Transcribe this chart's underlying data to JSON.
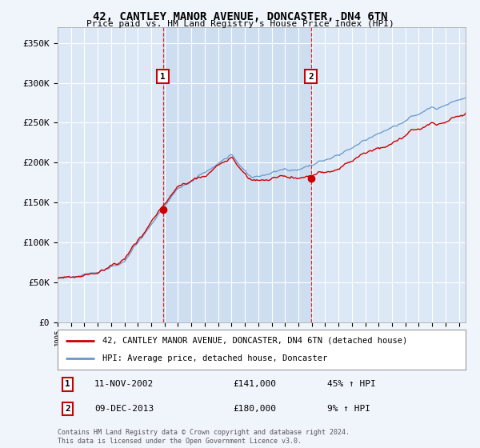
{
  "title": "42, CANTLEY MANOR AVENUE, DONCASTER, DN4 6TN",
  "subtitle": "Price paid vs. HM Land Registry's House Price Index (HPI)",
  "legend_line1": "42, CANTLEY MANOR AVENUE, DONCASTER, DN4 6TN (detached house)",
  "legend_line2": "HPI: Average price, detached house, Doncaster",
  "sale1_date": "11-NOV-2002",
  "sale1_price": "£141,000",
  "sale1_hpi": "45% ↑ HPI",
  "sale1_year": 2002.87,
  "sale1_value": 141000,
  "sale2_date": "09-DEC-2013",
  "sale2_price": "£180,000",
  "sale2_hpi": "9% ↑ HPI",
  "sale2_year": 2013.93,
  "sale2_value": 180000,
  "ylabel_ticks": [
    "£0",
    "£50K",
    "£100K",
    "£150K",
    "£200K",
    "£250K",
    "£300K",
    "£350K"
  ],
  "ytick_vals": [
    0,
    50000,
    100000,
    150000,
    200000,
    250000,
    300000,
    350000
  ],
  "ylim": [
    0,
    370000
  ],
  "xlim_start": 1995,
  "xlim_end": 2025.5,
  "red_color": "#cc0000",
  "blue_color": "#6699cc",
  "shade_color": "#dce8f5",
  "grid_color": "#ffffff",
  "plot_bg": "#dce8f5",
  "fig_bg": "#f0f4fb",
  "footer": "Contains HM Land Registry data © Crown copyright and database right 2024.\nThis data is licensed under the Open Government Licence v3.0."
}
